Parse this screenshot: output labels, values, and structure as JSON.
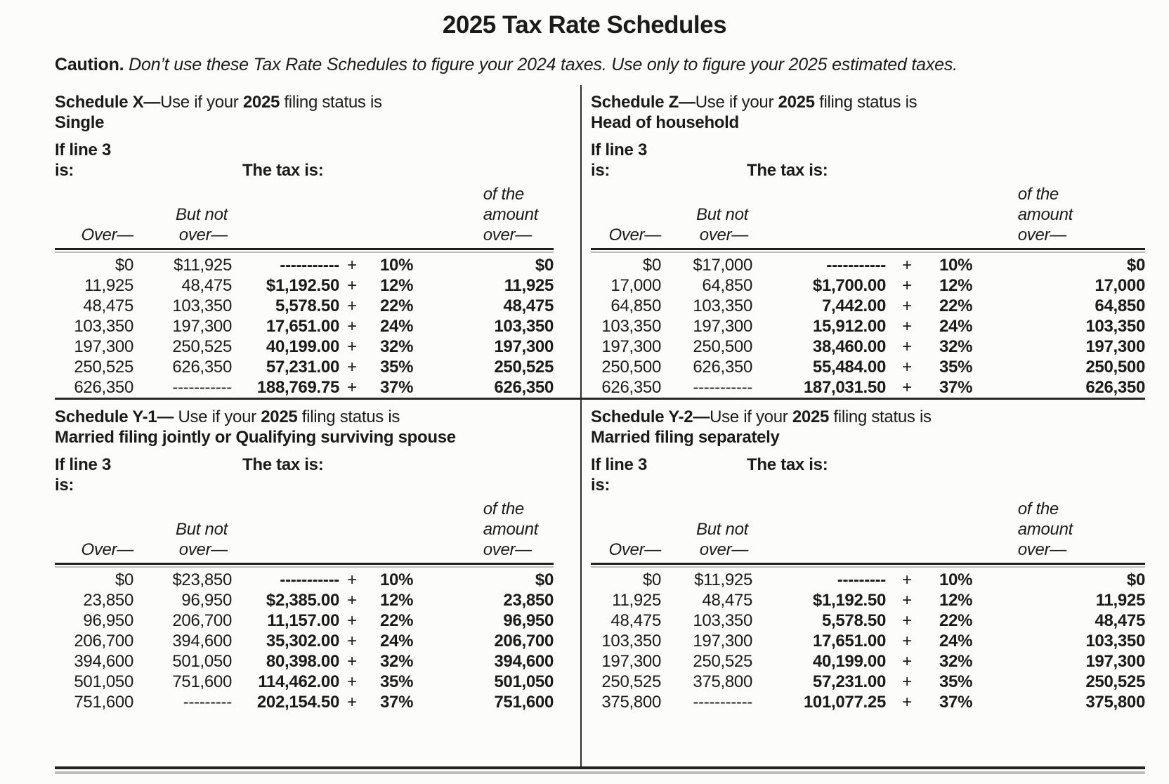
{
  "page": {
    "title": "2025 Tax Rate Schedules",
    "caution_label": "Caution.",
    "caution_text": " Don’t use these Tax Rate Schedules to figure your 2024 taxes. Use only to figure your 2025 estimated taxes."
  },
  "labels": {
    "if_line3_l1": "If line 3",
    "if_line3_l2": "is:",
    "tax_is": "The tax is:",
    "over": "Over—",
    "but_not_l1": "But not",
    "but_not_l2": "over—",
    "of_amount_l1": "of the",
    "of_amount_l2": "amount",
    "of_amount_l3": "over—"
  },
  "schedules": [
    {
      "id": "X",
      "title_bold": "Schedule X—",
      "title_mid": "Use if your ",
      "title_year": "2025",
      "title_rest": " filing status is",
      "subtitle": "Single",
      "rows": [
        {
          "over": "$0",
          "but_not": "$11,925",
          "tax": "-----------",
          "plus": "+",
          "rate": "10%",
          "of_amount": "$0"
        },
        {
          "over": "11,925",
          "but_not": "48,475",
          "tax": "$1,192.50",
          "plus": "+",
          "rate": "12%",
          "of_amount": "11,925"
        },
        {
          "over": "48,475",
          "but_not": "103,350",
          "tax": "5,578.50",
          "plus": "+",
          "rate": "22%",
          "of_amount": "48,475"
        },
        {
          "over": "103,350",
          "but_not": "197,300",
          "tax": "17,651.00",
          "plus": "+",
          "rate": "24%",
          "of_amount": "103,350"
        },
        {
          "over": "197,300",
          "but_not": "250,525",
          "tax": "40,199.00",
          "plus": "+",
          "rate": "32%",
          "of_amount": "197,300"
        },
        {
          "over": "250,525",
          "but_not": "626,350",
          "tax": "57,231.00",
          "plus": "+",
          "rate": "35%",
          "of_amount": "250,525"
        },
        {
          "over": "626,350",
          "but_not": "-----------",
          "tax": "188,769.75",
          "plus": "+",
          "rate": "37%",
          "of_amount": "626,350"
        }
      ]
    },
    {
      "id": "Z",
      "title_bold": "Schedule Z—",
      "title_mid": "Use if your ",
      "title_year": "2025",
      "title_rest": " filing status is",
      "subtitle": "Head of household",
      "rows": [
        {
          "over": "$0",
          "but_not": "$17,000",
          "tax": "-----------",
          "plus": "+",
          "rate": "10%",
          "of_amount": "$0"
        },
        {
          "over": "17,000",
          "but_not": "64,850",
          "tax": "$1,700.00",
          "plus": "+",
          "rate": "12%",
          "of_amount": "17,000"
        },
        {
          "over": "64,850",
          "but_not": "103,350",
          "tax": "7,442.00",
          "plus": "+",
          "rate": "22%",
          "of_amount": "64,850"
        },
        {
          "over": "103,350",
          "but_not": "197,300",
          "tax": "15,912.00",
          "plus": "+",
          "rate": "24%",
          "of_amount": "103,350"
        },
        {
          "over": "197,300",
          "but_not": "250,500",
          "tax": "38,460.00",
          "plus": "+",
          "rate": "32%",
          "of_amount": "197,300"
        },
        {
          "over": "250,500",
          "but_not": "626,350",
          "tax": "55,484.00",
          "plus": "+",
          "rate": "35%",
          "of_amount": "250,500"
        },
        {
          "over": "626,350",
          "but_not": "-----------",
          "tax": "187,031.50",
          "plus": "+",
          "rate": "37%",
          "of_amount": "626,350"
        }
      ]
    },
    {
      "id": "Y-1",
      "title_bold": "Schedule Y-1— ",
      "title_mid": "Use if your ",
      "title_year": "2025",
      "title_rest": " filing status is",
      "subtitle": "Married filing jointly or Qualifying surviving spouse",
      "rows": [
        {
          "over": "$0",
          "but_not": "$23,850",
          "tax": "-----------",
          "plus": "+",
          "rate": "10%",
          "of_amount": "$0"
        },
        {
          "over": "23,850",
          "but_not": "96,950",
          "tax": "$2,385.00",
          "plus": "+",
          "rate": "12%",
          "of_amount": "23,850"
        },
        {
          "over": "96,950",
          "but_not": "206,700",
          "tax": "11,157.00",
          "plus": "+",
          "rate": "22%",
          "of_amount": "96,950"
        },
        {
          "over": "206,700",
          "but_not": "394,600",
          "tax": "35,302.00",
          "plus": "+",
          "rate": "24%",
          "of_amount": "206,700"
        },
        {
          "over": "394,600",
          "but_not": "501,050",
          "tax": "80,398.00",
          "plus": "+",
          "rate": "32%",
          "of_amount": "394,600"
        },
        {
          "over": "501,050",
          "but_not": "751,600",
          "tax": "114,462.00",
          "plus": "+",
          "rate": "35%",
          "of_amount": "501,050"
        },
        {
          "over": "751,600",
          "but_not": "---------",
          "tax": "202,154.50",
          "plus": "+",
          "rate": "37%",
          "of_amount": "751,600"
        }
      ]
    },
    {
      "id": "Y-2",
      "title_bold": "Schedule Y-2—",
      "title_mid": "Use if your ",
      "title_year": "2025",
      "title_rest": " filing status is",
      "subtitle": "Married filing separately",
      "rows": [
        {
          "over": "$0",
          "but_not": "$11,925",
          "tax": "---------",
          "plus": "+",
          "rate": "10%",
          "of_amount": "$0"
        },
        {
          "over": "11,925",
          "but_not": "48,475",
          "tax": "$1,192.50",
          "plus": "+",
          "rate": "12%",
          "of_amount": "11,925"
        },
        {
          "over": "48,475",
          "but_not": "103,350",
          "tax": "5,578.50",
          "plus": "+",
          "rate": "22%",
          "of_amount": "48,475"
        },
        {
          "over": "103,350",
          "but_not": "197,300",
          "tax": "17,651.00",
          "plus": "+",
          "rate": "24%",
          "of_amount": "103,350"
        },
        {
          "over": "197,300",
          "but_not": "250,525",
          "tax": "40,199.00",
          "plus": "+",
          "rate": "32%",
          "of_amount": "197,300"
        },
        {
          "over": "250,525",
          "but_not": "375,800",
          "tax": "57,231.00",
          "plus": "+",
          "rate": "35%",
          "of_amount": "250,525"
        },
        {
          "over": "375,800",
          "but_not": "-----------",
          "tax": "101,077.25",
          "plus": "+",
          "rate": "37%",
          "of_amount": "375,800"
        }
      ]
    }
  ]
}
